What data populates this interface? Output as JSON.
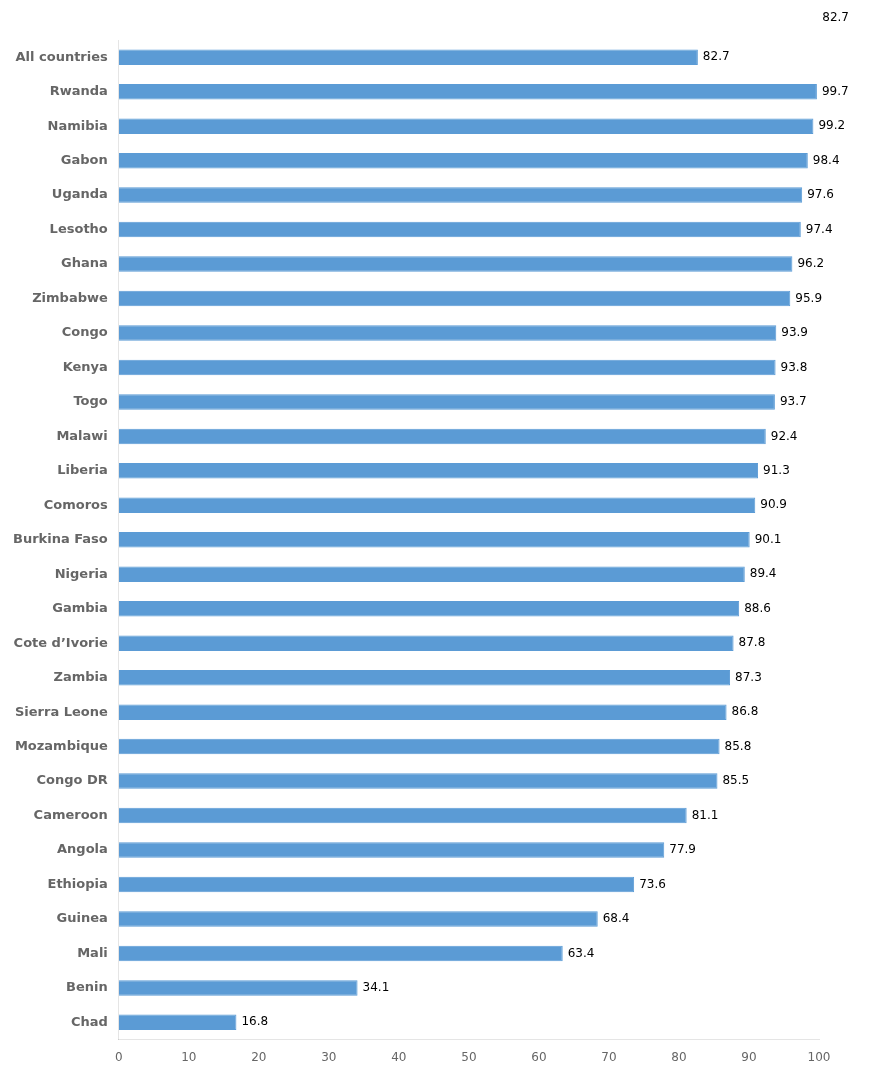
{
  "chart_data": {
    "type": "bar",
    "orientation": "horizontal",
    "categories": [
      "All countries",
      "Rwanda",
      "Namibia",
      "Gabon",
      "Uganda",
      "Lesotho",
      "Ghana",
      "Zimbabwe",
      "Congo",
      "Kenya",
      "Togo",
      "Malawi",
      "Liberia",
      "Comoros",
      "Burkina Faso",
      "Nigeria",
      "Gambia",
      "Cote d’Ivorie",
      "Zambia",
      "Sierra Leone",
      "Mozambique",
      "Congo DR",
      "Cameroon",
      "Angola",
      "Ethiopia",
      "Guinea",
      "Mali",
      "Benin",
      "Chad"
    ],
    "values": [
      82.7,
      99.7,
      99.2,
      98.4,
      97.6,
      97.4,
      96.2,
      95.9,
      93.9,
      93.8,
      93.7,
      92.4,
      91.3,
      90.9,
      90.1,
      89.4,
      88.6,
      87.8,
      87.3,
      86.8,
      85.8,
      85.5,
      81.1,
      77.9,
      73.6,
      68.4,
      63.4,
      34.1,
      16.8
    ],
    "color": "#5b9bd5",
    "xlim": [
      0,
      100
    ],
    "xticks": [
      0,
      10,
      20,
      30,
      40,
      50,
      60,
      70,
      80,
      90,
      100
    ],
    "grid": false,
    "data_labels": true,
    "annotation": "82.7"
  }
}
